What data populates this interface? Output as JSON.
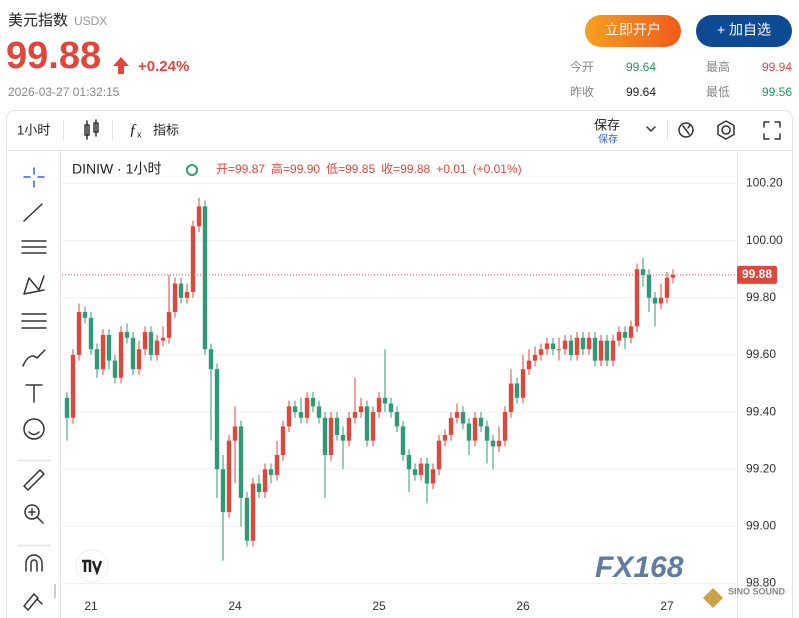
{
  "header": {
    "title": "美元指数",
    "code": "USDX",
    "price": "99.88",
    "change": "+0.24%",
    "datetime": "2026-03-27 01:32:15",
    "open_account": "立即开户",
    "add_watch": "+ 加自选"
  },
  "stats": [
    {
      "label": "今开",
      "value": "99.64",
      "color": "#1a9c5b"
    },
    {
      "label": "最高",
      "value": "99.94",
      "color": "#e0473c"
    },
    {
      "label": "昨收",
      "value": "99.64",
      "color": "#222222"
    },
    {
      "label": "最低",
      "value": "99.56",
      "color": "#1a9c5b"
    }
  ],
  "toolbar": {
    "interval": "1小时",
    "indicators": "指标",
    "save": "保存",
    "save_sub": "保存"
  },
  "watermark": "FX168",
  "watermark_sub": "SINO SOUND",
  "chart_data": {
    "type": "candlestick",
    "symbol": "DINIW · 1小时",
    "legend": [
      "开=99.87",
      "高=99.90",
      "低=99.85",
      "收=99.88",
      "+0.01",
      "(+0.01%)"
    ],
    "up_color": "#e0473c",
    "down_color": "#2f9a78",
    "grid": true,
    "last_price": 99.88,
    "ylim": [
      98.76,
      100.31
    ],
    "yticks": [
      {
        "value": 100.2,
        "label": "100.20"
      },
      {
        "value": 100,
        "label": "100.00"
      },
      {
        "value": 99.8,
        "label": "99.80"
      },
      {
        "value": 99.6,
        "label": "99.60"
      },
      {
        "value": 99.4,
        "label": "99.40"
      },
      {
        "value": 99.2,
        "label": "99.20"
      },
      {
        "value": 99,
        "label": "99.00"
      },
      {
        "value": 98.8,
        "label": "98.80"
      }
    ],
    "categories": [
      null,
      null,
      null,
      null,
      "21",
      null,
      null,
      null,
      null,
      null,
      null,
      null,
      null,
      null,
      null,
      null,
      null,
      null,
      null,
      null,
      null,
      null,
      null,
      null,
      null,
      null,
      null,
      null,
      "24",
      null,
      null,
      null,
      null,
      null,
      null,
      null,
      null,
      null,
      null,
      null,
      null,
      null,
      null,
      null,
      null,
      null,
      null,
      null,
      null,
      null,
      null,
      null,
      "25",
      null,
      null,
      null,
      null,
      null,
      null,
      null,
      null,
      null,
      null,
      null,
      null,
      null,
      null,
      null,
      null,
      null,
      null,
      null,
      null,
      null,
      null,
      null,
      "26",
      null,
      null,
      null,
      null,
      null,
      null,
      null,
      null,
      null,
      null,
      null,
      null,
      null,
      null,
      null,
      null,
      null,
      null,
      null,
      null,
      null,
      null,
      null,
      "27",
      null
    ],
    "open": [
      99.45,
      99.38,
      99.6,
      99.75,
      99.73,
      99.62,
      99.55,
      99.67,
      99.58,
      99.52,
      99.68,
      99.66,
      99.55,
      99.62,
      99.68,
      99.6,
      99.65,
      99.66,
      99.75,
      99.85,
      99.8,
      99.82,
      100.05,
      100.12,
      99.62,
      99.55,
      99.2,
      99.05,
      99.3,
      99.35,
      99.1,
      98.95,
      99.15,
      99.12,
      99.2,
      99.18,
      99.25,
      99.35,
      99.42,
      99.4,
      99.38,
      99.45,
      99.42,
      99.38,
      99.25,
      99.38,
      99.32,
      99.3,
      99.38,
      99.4,
      99.42,
      99.3,
      99.4,
      99.45,
      99.43,
      99.4,
      99.35,
      99.25,
      99.2,
      99.18,
      99.22,
      99.15,
      99.2,
      99.3,
      99.32,
      99.38,
      99.4,
      99.36,
      99.3,
      99.38,
      99.35,
      99.3,
      99.28,
      99.3,
      99.4,
      99.5,
      99.45,
      99.55,
      99.58,
      99.6,
      99.62,
      99.64,
      99.62,
      99.62,
      99.65,
      99.6,
      99.66,
      99.62,
      99.66,
      99.58,
      99.65,
      99.58,
      99.65,
      99.68,
      99.66,
      99.7,
      99.9,
      99.88,
      99.8,
      99.78,
      99.8,
      99.87
    ],
    "high": [
      99.47,
      99.62,
      99.78,
      99.77,
      99.75,
      99.64,
      99.69,
      99.69,
      99.6,
      99.7,
      99.71,
      99.68,
      99.65,
      99.7,
      99.7,
      99.67,
      99.7,
      99.88,
      99.87,
      99.87,
      99.85,
      100.07,
      100.15,
      100.14,
      99.64,
      99.57,
      99.25,
      99.32,
      99.42,
      99.37,
      99.12,
      99.17,
      99.18,
      99.22,
      99.22,
      99.3,
      99.37,
      99.44,
      99.44,
      99.45,
      99.47,
      99.47,
      99.44,
      99.4,
      99.4,
      99.4,
      99.35,
      99.4,
      99.52,
      99.45,
      99.44,
      99.42,
      99.47,
      99.62,
      99.45,
      99.42,
      99.37,
      99.27,
      99.22,
      99.24,
      99.24,
      99.22,
      99.32,
      99.34,
      99.4,
      99.43,
      99.42,
      99.38,
      99.4,
      99.4,
      99.37,
      99.32,
      99.35,
      99.42,
      99.55,
      99.52,
      99.6,
      99.62,
      99.63,
      99.64,
      99.66,
      99.66,
      99.66,
      99.67,
      99.67,
      99.68,
      99.68,
      99.68,
      99.68,
      99.67,
      99.67,
      99.67,
      99.7,
      99.7,
      99.72,
      99.92,
      99.94,
      99.9,
      99.82,
      99.85,
      99.89,
      99.9
    ],
    "low": [
      99.3,
      99.36,
      99.58,
      99.71,
      99.6,
      99.52,
      99.53,
      99.55,
      99.5,
      99.5,
      99.64,
      99.53,
      99.53,
      99.6,
      99.58,
      99.58,
      99.63,
      99.64,
      99.73,
      99.78,
      99.78,
      99.8,
      100.03,
      99.6,
      99.3,
      99.1,
      98.88,
      99.03,
      99.15,
      99.0,
      98.93,
      98.93,
      99.1,
      99.1,
      99.15,
      99.16,
      99.23,
      99.33,
      99.38,
      99.36,
      99.36,
      99.4,
      99.36,
      99.1,
      99.23,
      99.3,
      99.2,
      99.28,
      99.36,
      99.38,
      99.28,
      99.28,
      99.38,
      99.4,
      99.38,
      99.33,
      99.23,
      99.12,
      99.16,
      99.16,
      99.08,
      99.13,
      99.18,
      99.28,
      99.3,
      99.36,
      99.34,
      99.25,
      99.28,
      99.33,
      99.22,
      99.2,
      99.26,
      99.28,
      99.38,
      99.43,
      99.43,
      99.53,
      99.56,
      99.58,
      99.6,
      99.6,
      99.58,
      99.6,
      99.58,
      99.58,
      99.6,
      99.6,
      99.56,
      99.56,
      99.56,
      99.56,
      99.63,
      99.62,
      99.64,
      99.68,
      99.84,
      99.75,
      99.7,
      99.76,
      99.78,
      99.85
    ],
    "close": [
      99.38,
      99.6,
      99.75,
      99.73,
      99.62,
      99.55,
      99.67,
      99.58,
      99.52,
      99.68,
      99.66,
      99.55,
      99.62,
      99.68,
      99.6,
      99.65,
      99.66,
      99.75,
      99.85,
      99.8,
      99.82,
      100.05,
      100.12,
      99.62,
      99.55,
      99.2,
      99.05,
      99.3,
      99.35,
      99.1,
      98.95,
      99.15,
      99.12,
      99.2,
      99.18,
      99.25,
      99.35,
      99.42,
      99.4,
      99.38,
      99.45,
      99.42,
      99.38,
      99.25,
      99.38,
      99.32,
      99.3,
      99.38,
      99.4,
      99.42,
      99.3,
      99.4,
      99.45,
      99.43,
      99.4,
      99.35,
      99.25,
      99.2,
      99.18,
      99.22,
      99.15,
      99.2,
      99.3,
      99.32,
      99.38,
      99.4,
      99.36,
      99.3,
      99.38,
      99.35,
      99.3,
      99.28,
      99.3,
      99.4,
      99.5,
      99.45,
      99.55,
      99.58,
      99.6,
      99.62,
      99.64,
      99.62,
      99.62,
      99.65,
      99.6,
      99.66,
      99.62,
      99.66,
      99.58,
      99.65,
      99.58,
      99.65,
      99.68,
      99.66,
      99.7,
      99.9,
      99.88,
      99.8,
      99.78,
      99.8,
      99.87,
      99.88
    ]
  }
}
